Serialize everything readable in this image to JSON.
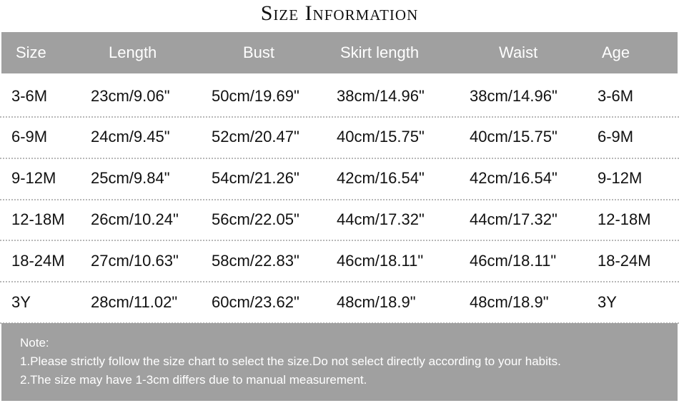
{
  "title": "Size Information",
  "table": {
    "headers": [
      "Size",
      "Length",
      "Bust",
      "Skirt length",
      "Waist",
      "Age"
    ],
    "rows": [
      [
        "3-6M",
        "23cm/9.06\"",
        "50cm/19.69\"",
        "38cm/14.96\"",
        "38cm/14.96\"",
        "3-6M"
      ],
      [
        "6-9M",
        "24cm/9.45\"",
        "52cm/20.47\"",
        "40cm/15.75\"",
        "40cm/15.75\"",
        "6-9M"
      ],
      [
        "9-12M",
        "25cm/9.84\"",
        "54cm/21.26\"",
        "42cm/16.54\"",
        "42cm/16.54\"",
        "9-12M"
      ],
      [
        "12-18M",
        "26cm/10.24\"",
        "56cm/22.05\"",
        "44cm/17.32\"",
        "44cm/17.32\"",
        "12-18M"
      ],
      [
        "18-24M",
        "27cm/10.63\"",
        "58cm/22.83\"",
        "46cm/18.11\"",
        "46cm/18.11\"",
        "18-24M"
      ],
      [
        "3Y",
        "28cm/11.02\"",
        "60cm/23.62\"",
        "48cm/18.9\"",
        "48cm/18.9\"",
        "3Y"
      ]
    ]
  },
  "note": {
    "label": "Note:",
    "lines": [
      "1.Please strictly follow the size chart to select the size.Do not select directly according to your habits.",
      "2.The size may have 1-3cm differs due to manual measurement."
    ]
  },
  "colors": {
    "header_bg": "#a0a0a0",
    "header_text": "#ffffff",
    "text": "#111111"
  }
}
